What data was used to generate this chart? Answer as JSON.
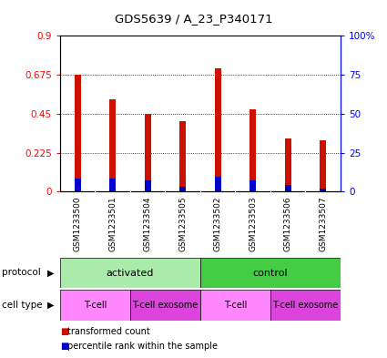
{
  "title": "GDS5639 / A_23_P340171",
  "samples": [
    "GSM1233500",
    "GSM1233501",
    "GSM1233504",
    "GSM1233505",
    "GSM1233502",
    "GSM1233503",
    "GSM1233506",
    "GSM1233507"
  ],
  "red_values": [
    0.675,
    0.535,
    0.45,
    0.405,
    0.71,
    0.475,
    0.305,
    0.295
  ],
  "blue_values": [
    0.075,
    0.075,
    0.065,
    0.028,
    0.085,
    0.065,
    0.04,
    0.018
  ],
  "ylim": [
    0,
    0.9
  ],
  "yticks_left": [
    0,
    0.225,
    0.45,
    0.675,
    0.9
  ],
  "yticks_right": [
    0,
    25,
    50,
    75,
    100
  ],
  "ytick_labels_right": [
    "0",
    "25",
    "50",
    "75",
    "100%"
  ],
  "protocol_groups": [
    {
      "label": "activated",
      "start": 0,
      "end": 4,
      "color": "#aaeaaa"
    },
    {
      "label": "control",
      "start": 4,
      "end": 8,
      "color": "#44cc44"
    }
  ],
  "cell_type_groups": [
    {
      "label": "T-cell",
      "start": 0,
      "end": 2,
      "color": "#ff88ff"
    },
    {
      "label": "T-cell exosome",
      "start": 2,
      "end": 4,
      "color": "#dd44dd"
    },
    {
      "label": "T-cell",
      "start": 4,
      "end": 6,
      "color": "#ff88ff"
    },
    {
      "label": "T-cell exosome",
      "start": 6,
      "end": 8,
      "color": "#dd44dd"
    }
  ],
  "legend_red_label": "transformed count",
  "legend_blue_label": "percentile rank within the sample",
  "bar_width": 0.18,
  "red_color": "#cc1100",
  "blue_color": "#0000cc",
  "protocol_label": "protocol",
  "cell_type_label": "cell type",
  "plot_bg": "#ffffff",
  "sample_area_bg": "#cccccc"
}
